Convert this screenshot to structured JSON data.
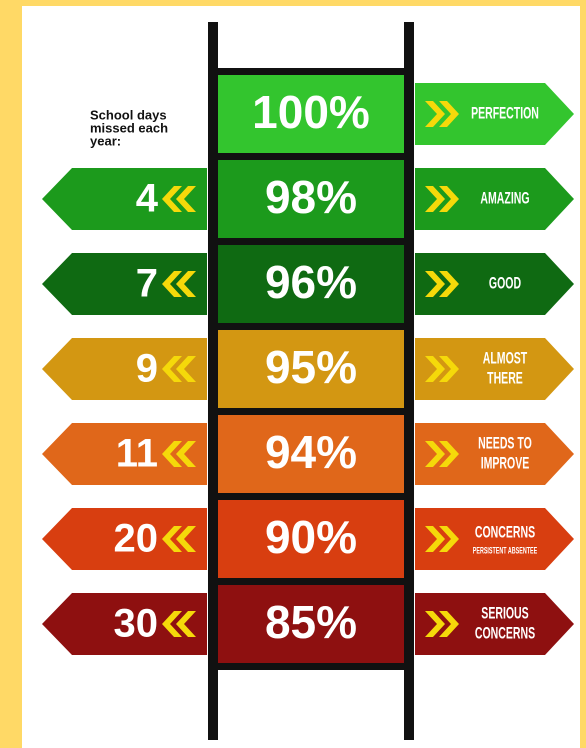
{
  "header": {
    "lines": [
      "School days",
      "missed each",
      "year:"
    ]
  },
  "rows": [
    {
      "percent": "100%",
      "label": [
        "PERFECTION"
      ],
      "color": "#33c52e"
    },
    {
      "percent": "98%",
      "days": "4",
      "label": [
        "AMAZING"
      ],
      "color": "#1c9a1c"
    },
    {
      "percent": "96%",
      "days": "7",
      "label": [
        "GOOD"
      ],
      "color": "#0f6a12"
    },
    {
      "percent": "95%",
      "days": "9",
      "label": [
        "ALMOST",
        "THERE"
      ],
      "color": "#d39712"
    },
    {
      "percent": "94%",
      "days": "11",
      "label": [
        "NEEDS TO",
        "IMPROVE"
      ],
      "color": "#e0671a"
    },
    {
      "percent": "90%",
      "days": "20",
      "label": [
        "CONCERNS"
      ],
      "note": "PERSISTENT ABSENTEE",
      "color": "#d83e10"
    },
    {
      "percent": "85%",
      "days": "30",
      "label": [
        "SERIOUS",
        "CONCERNS"
      ],
      "color": "#8e1010"
    }
  ]
}
